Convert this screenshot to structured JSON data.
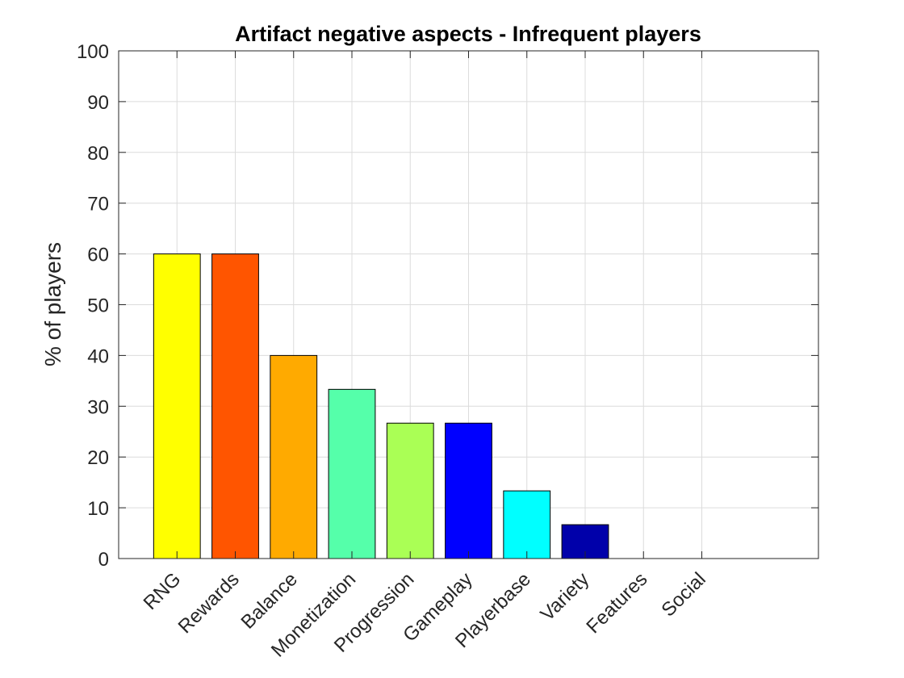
{
  "chart_data": {
    "type": "bar",
    "title": "Artifact negative aspects - Infrequent players",
    "xlabel": "",
    "ylabel": "% of players",
    "categories": [
      "RNG",
      "Rewards",
      "Balance",
      "Monetization",
      "Progression",
      "Gameplay",
      "Playerbase",
      "Variety",
      "Features",
      "Social"
    ],
    "values": [
      60,
      60,
      40,
      33.33,
      26.67,
      26.67,
      13.33,
      6.67,
      0,
      0
    ],
    "colors": [
      "#ffff00",
      "#ff5500",
      "#ffaa00",
      "#55ffaa",
      "#aaff55",
      "#0000ff",
      "#00ffff",
      "#0000aa",
      "#000000",
      "#000000"
    ],
    "ylim": [
      0,
      100
    ],
    "xlim": [
      0,
      12
    ],
    "yticks": [
      "0",
      "10",
      "20",
      "30",
      "40",
      "50",
      "60",
      "70",
      "80",
      "90",
      "100"
    ],
    "grid": true,
    "legend": "none"
  }
}
